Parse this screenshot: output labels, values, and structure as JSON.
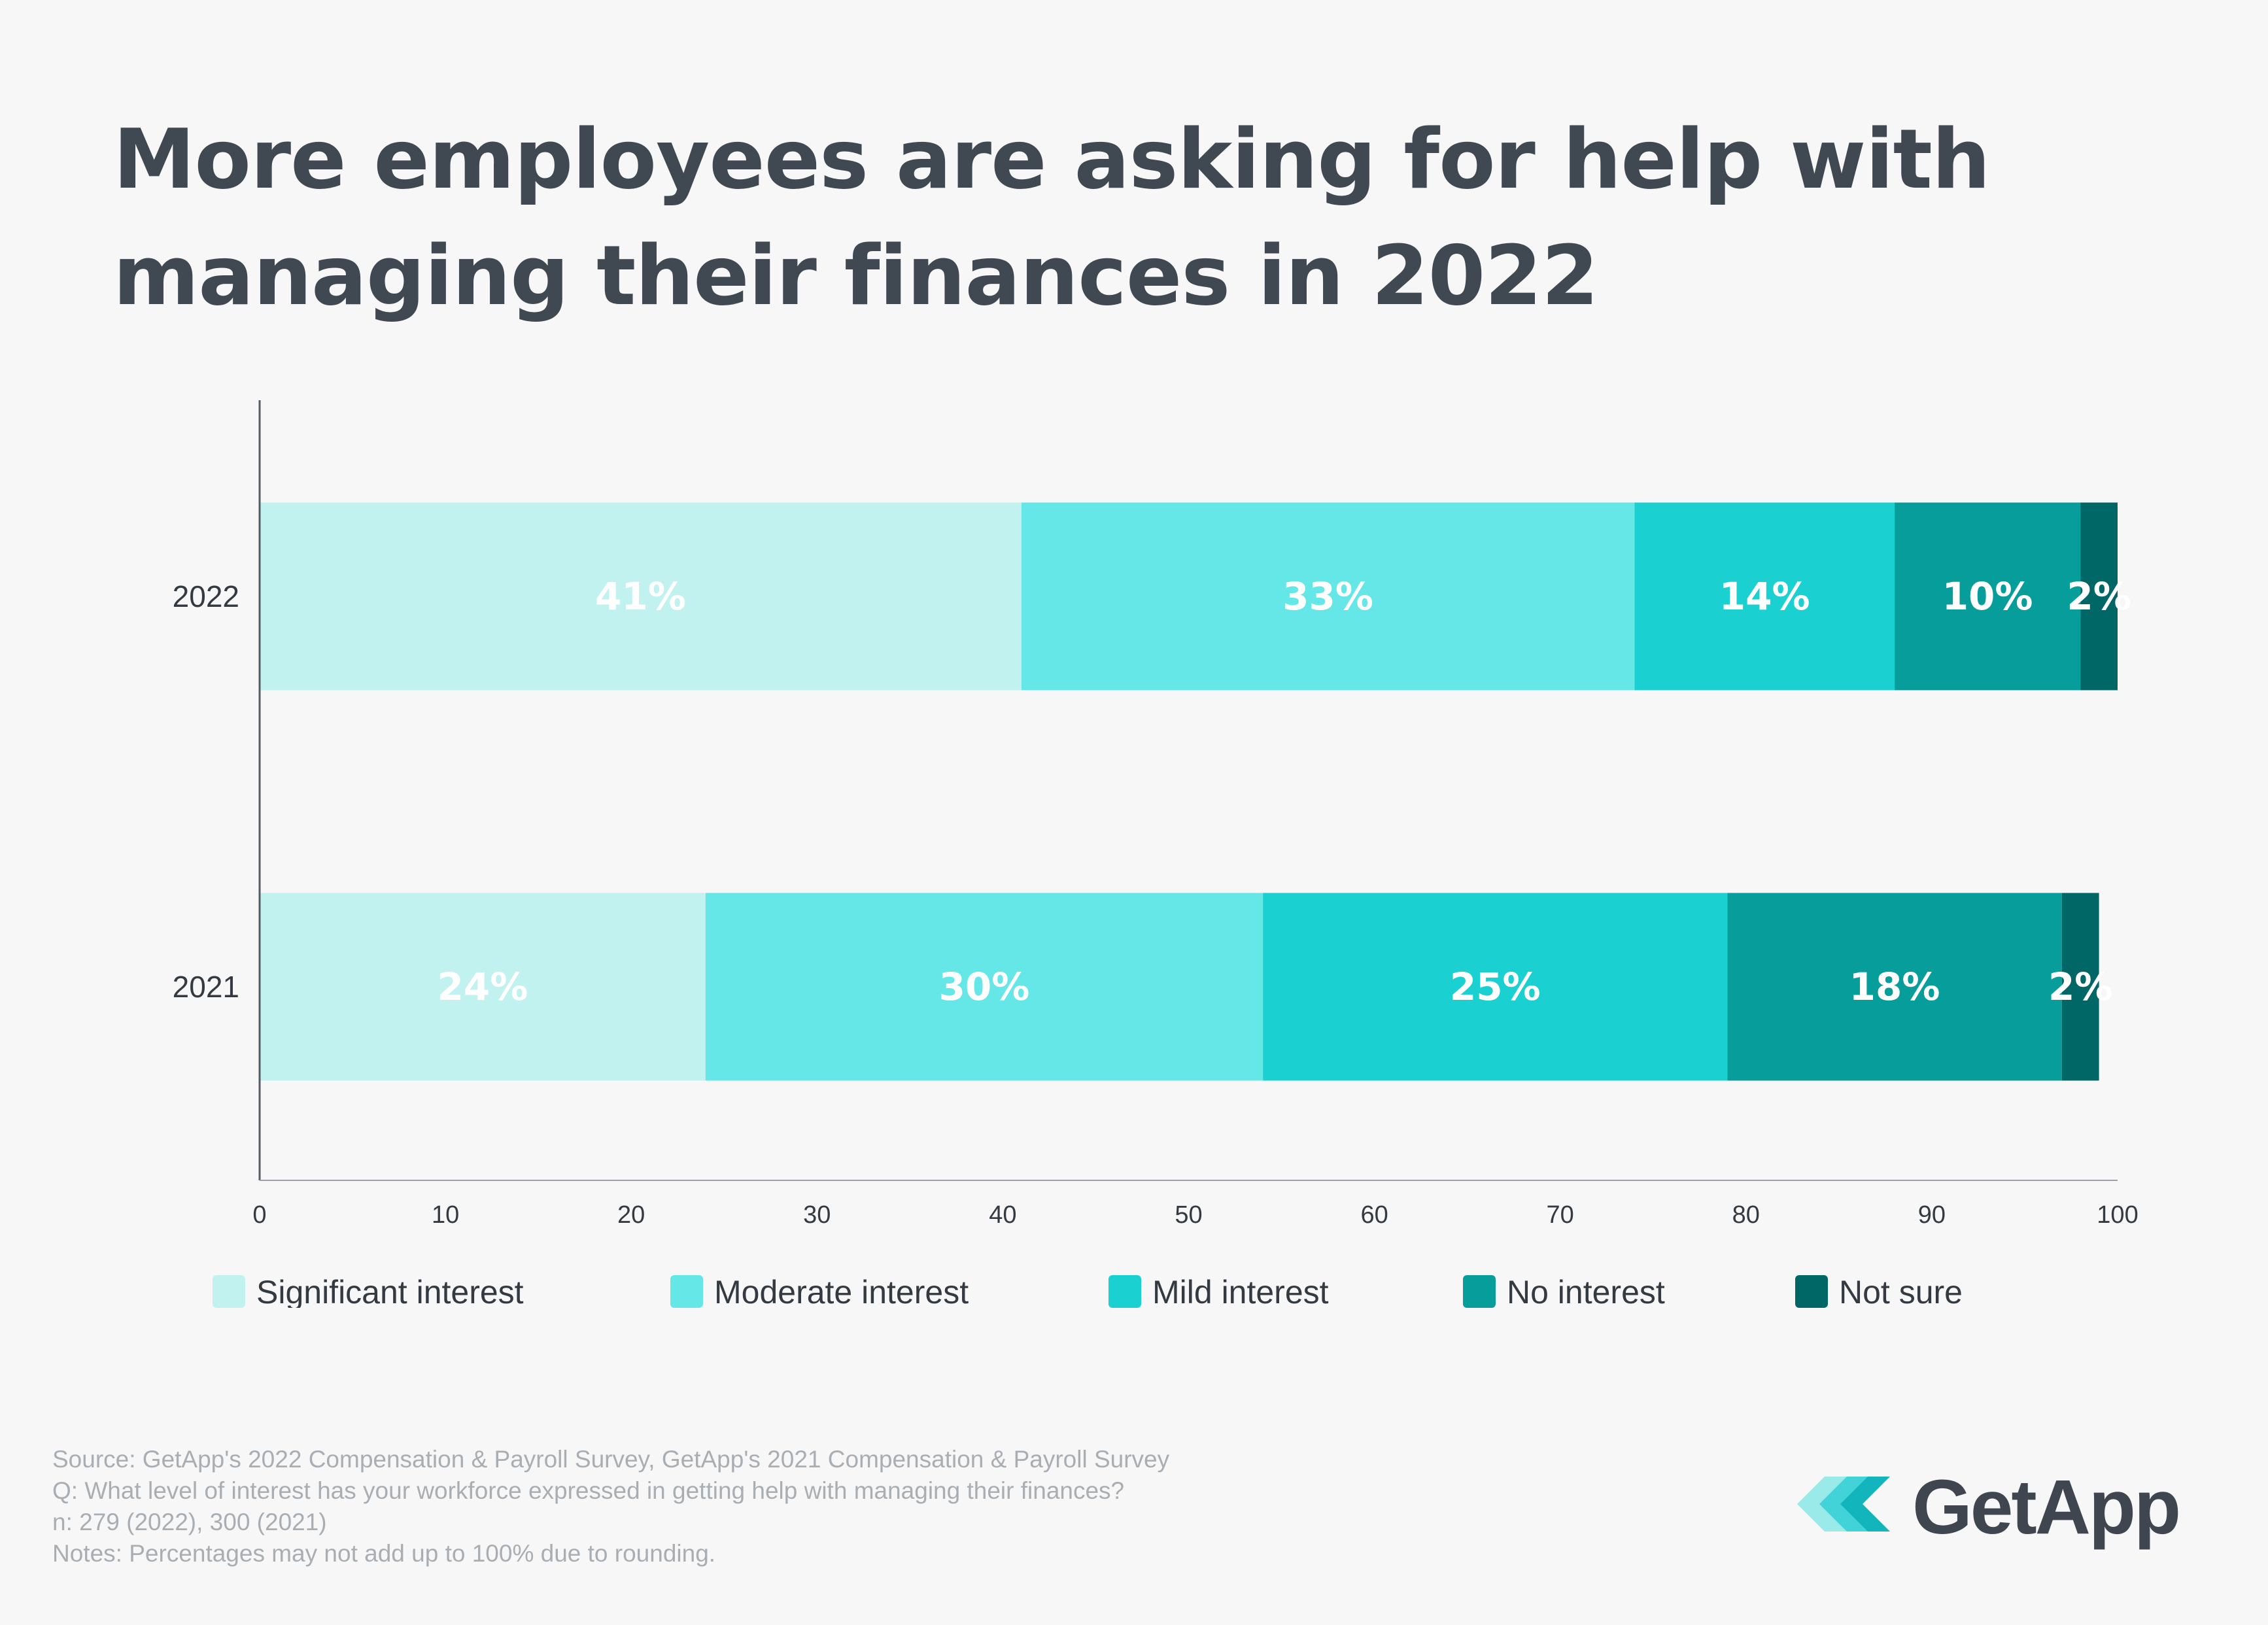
{
  "title": {
    "line1": "More employees are asking for help with",
    "line2": "managing their finances in 2022"
  },
  "chart_data": {
    "type": "bar",
    "orientation": "horizontal",
    "stacked": true,
    "categories": [
      "2022",
      "2021"
    ],
    "series": [
      {
        "name": "Significant interest",
        "color": "#c2f2f0",
        "values": [
          41,
          24
        ],
        "labels": [
          "41%",
          "24%"
        ]
      },
      {
        "name": "Moderate interest",
        "color": "#65e7e8",
        "values": [
          33,
          30
        ],
        "labels": [
          "33%",
          "30%"
        ]
      },
      {
        "name": "Mild interest",
        "color": "#1ad0d1",
        "values": [
          14,
          25
        ],
        "labels": [
          "14%",
          "25%"
        ]
      },
      {
        "name": "No interest",
        "color": "#079d9b",
        "values": [
          10,
          18
        ],
        "labels": [
          "10%",
          "18%"
        ]
      },
      {
        "name": "Not sure",
        "color": "#006766",
        "values": [
          2,
          2
        ],
        "labels": [
          "2%",
          "2%"
        ]
      }
    ],
    "xlim": [
      0,
      100
    ],
    "xticks": [
      0,
      10,
      20,
      30,
      40,
      50,
      60,
      70,
      80,
      90,
      100
    ],
    "xlabel": "",
    "ylabel": "",
    "grid": false,
    "legend_position": "bottom"
  },
  "notes": {
    "source": "Source: GetApp's 2022 Compensation & Payroll Survey, GetApp's 2021 Compensation & Payroll Survey",
    "question": "Q: What level of interest has your workforce expressed in getting help with managing their finances?",
    "sample": "n: 279 (2022), 300 (2021)",
    "disclaimer": "Notes: Percentages may not add up to 100% due to rounding."
  },
  "brand": {
    "name": "GetApp",
    "text_color": "#3f4650",
    "icon_colors": [
      "#9beaea",
      "#41d3d8",
      "#12b5bb"
    ]
  }
}
